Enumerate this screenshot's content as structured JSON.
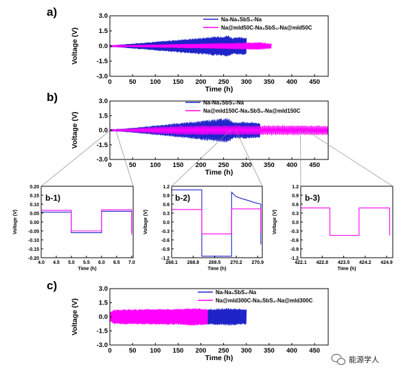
{
  "colors": {
    "blue": "#1f24c8",
    "pink": "#ff00ff",
    "zoom": "#888888"
  },
  "watermark": {
    "text": "能源学人",
    "icon": "wechat-icon"
  },
  "chart_data": [
    {
      "id": "a",
      "type": "line",
      "panel_label": "a)",
      "xlabel": "Time (h)",
      "ylabel": "Voltage (V)",
      "xlim": [
        0,
        480
      ],
      "ylim": [
        -3,
        3
      ],
      "xticks": [
        0,
        50,
        100,
        150,
        200,
        250,
        300,
        350,
        400,
        450
      ],
      "yticks": [
        -3.0,
        -1.5,
        0.0,
        1.5,
        3.0
      ],
      "series": [
        {
          "name": "Na-Na₃SbS₄-Na",
          "color": "#1f24c8",
          "envelope": [
            [
              0,
              0.05
            ],
            [
              50,
              0.25
            ],
            [
              100,
              0.45
            ],
            [
              150,
              0.65
            ],
            [
              200,
              0.85
            ],
            [
              240,
              1.0
            ],
            [
              260,
              1.1
            ],
            [
              270,
              0.85
            ],
            [
              285,
              0.9
            ],
            [
              300,
              0.9
            ]
          ]
        },
        {
          "name": "Na@mld50C-Na₃SbS₄-Na@mld50C",
          "color": "#ff00ff",
          "envelope": [
            [
              0,
              0.05
            ],
            [
              50,
              0.1
            ],
            [
              100,
              0.15
            ],
            [
              150,
              0.2
            ],
            [
              200,
              0.25
            ],
            [
              250,
              0.3
            ],
            [
              300,
              0.35
            ],
            [
              330,
              0.38
            ],
            [
              345,
              0.3
            ],
            [
              355,
              0.25
            ]
          ]
        }
      ]
    },
    {
      "id": "b",
      "type": "line",
      "panel_label": "b)",
      "xlabel": "Time (h)",
      "ylabel": "Voltage (V)",
      "xlim": [
        0,
        480
      ],
      "ylim": [
        -3,
        3
      ],
      "xticks": [
        0,
        50,
        100,
        150,
        200,
        250,
        300,
        350,
        400,
        450
      ],
      "yticks": [
        -3.0,
        -1.5,
        0.0,
        1.5,
        3.0
      ],
      "series": [
        {
          "name": "Na-Na₃SbS₄-Na",
          "color": "#1f24c8",
          "envelope": [
            [
              0,
              0.05
            ],
            [
              50,
              0.25
            ],
            [
              100,
              0.5
            ],
            [
              150,
              0.75
            ],
            [
              200,
              1.0
            ],
            [
              240,
              1.2
            ],
            [
              260,
              1.3
            ],
            [
              270,
              0.9
            ],
            [
              285,
              0.85
            ],
            [
              300,
              0.9
            ],
            [
              330,
              0.8
            ]
          ]
        },
        {
          "name": "Na@mld150C-Na₃SbS₄-Na@mld150C",
          "color": "#ff00ff",
          "envelope": [
            [
              0,
              0.05
            ],
            [
              50,
              0.2
            ],
            [
              100,
              0.35
            ],
            [
              150,
              0.45
            ],
            [
              200,
              0.5
            ],
            [
              300,
              0.5
            ],
            [
              400,
              0.5
            ],
            [
              480,
              0.5
            ]
          ]
        }
      ]
    },
    {
      "id": "b-1",
      "type": "line",
      "panel_label": "b-1)",
      "xlabel": "Time (h)",
      "ylabel": "Voltage (V)",
      "xlim": [
        4.0,
        7.05
      ],
      "ylim": [
        -0.2,
        0.2
      ],
      "xticks": [
        4.0,
        4.5,
        5.0,
        5.5,
        6.0,
        6.5,
        7.0
      ],
      "yticks": [
        -0.2,
        -0.15,
        -0.1,
        -0.05,
        0.0,
        0.05,
        0.1,
        0.15,
        0.2
      ],
      "series": [
        {
          "name": "Na-Na₃SbS₄-Na",
          "color": "#1f24c8",
          "x": [
            4.0,
            4.0,
            5.0,
            5.0,
            6.0,
            6.0,
            7.0,
            7.0
          ],
          "y": [
            -0.05,
            0.055,
            0.055,
            -0.06,
            -0.06,
            0.06,
            0.06,
            -0.06
          ]
        },
        {
          "name": "Na@mld150C-Na₃SbS₄-Na@mld150C",
          "color": "#ff00ff",
          "x": [
            4.0,
            4.0,
            5.0,
            5.0,
            6.0,
            6.0,
            7.0,
            7.0
          ],
          "y": [
            -0.06,
            0.065,
            0.065,
            -0.05,
            -0.05,
            0.068,
            0.068,
            -0.07
          ]
        }
      ]
    },
    {
      "id": "b-2",
      "type": "line",
      "panel_label": "b-2)",
      "xlabel": "Time (h)",
      "ylabel": "Voltage (V)",
      "xlim": [
        268.1,
        271.05
      ],
      "ylim": [
        -1.2,
        1.2
      ],
      "xticks": [
        268.1,
        268.8,
        269.5,
        270.2,
        270.9
      ],
      "yticks": [
        -1.2,
        -0.9,
        -0.6,
        -0.3,
        0.0,
        0.3,
        0.6,
        0.9,
        1.2
      ],
      "series": [
        {
          "name": "Na-Na₃SbS₄-Na",
          "color": "#1f24c8",
          "x": [
            268.1,
            268.1,
            269.08,
            269.08,
            270.05,
            270.05,
            270.2,
            270.4,
            270.6,
            270.8,
            271.0,
            271.0
          ],
          "y": [
            -0.8,
            1.08,
            1.08,
            -1.15,
            -1.15,
            1.0,
            0.85,
            0.78,
            0.72,
            0.65,
            0.6,
            -0.75
          ]
        },
        {
          "name": "Na@mld150C-Na₃SbS₄-Na@mld150C",
          "color": "#ff00ff",
          "x": [
            268.1,
            268.1,
            269.08,
            269.08,
            270.05,
            270.05,
            271.0,
            271.0
          ],
          "y": [
            -0.4,
            0.42,
            0.42,
            -0.4,
            -0.4,
            0.44,
            0.44,
            -0.4
          ]
        }
      ]
    },
    {
      "id": "b-3",
      "type": "line",
      "panel_label": "b-3)",
      "xlabel": "Time (h)",
      "ylabel": "Voltage (V)",
      "xlim": [
        422.1,
        425.1
      ],
      "ylim": [
        -1.2,
        1.2
      ],
      "xticks": [
        422.1,
        422.8,
        423.5,
        424.2,
        424.9
      ],
      "yticks": [
        -1.2,
        -0.9,
        -0.6,
        -0.3,
        0.0,
        0.3,
        0.6,
        0.9,
        1.2
      ],
      "series": [
        {
          "name": "Na@mld150C-Na₃SbS₄-Na@mld150C",
          "color": "#ff00ff",
          "x": [
            422.1,
            422.1,
            423.05,
            423.05,
            424.0,
            424.0,
            425.0,
            425.0
          ],
          "y": [
            -0.4,
            0.47,
            0.47,
            -0.45,
            -0.45,
            0.47,
            0.47,
            -0.45
          ]
        }
      ]
    },
    {
      "id": "c",
      "type": "line",
      "panel_label": "c)",
      "xlabel": "Time (h)",
      "ylabel": "Voltage (V)",
      "xlim": [
        0,
        480
      ],
      "ylim": [
        -3,
        3
      ],
      "xticks": [
        0,
        50,
        100,
        150,
        200,
        250,
        300,
        350,
        400,
        450
      ],
      "yticks": [
        -3.0,
        -1.5,
        0.0,
        1.5,
        3.0
      ],
      "series": [
        {
          "name": "Na-Na₃SbS₄-Na",
          "color": "#1f24c8",
          "envelope": [
            [
              0,
              0.5
            ],
            [
              20,
              0.7
            ],
            [
              100,
              0.75
            ],
            [
              200,
              0.8
            ],
            [
              240,
              0.9
            ],
            [
              260,
              0.95
            ],
            [
              280,
              0.9
            ],
            [
              300,
              0.85
            ]
          ]
        },
        {
          "name": "Na@mld300C-Na₃SbS₄-Na@mld300C",
          "color": "#ff00ff",
          "envelope": [
            [
              0,
              0.5
            ],
            [
              10,
              0.8
            ],
            [
              50,
              0.82
            ],
            [
              100,
              0.85
            ],
            [
              150,
              0.85
            ],
            [
              180,
              0.95
            ],
            [
              200,
              0.9
            ],
            [
              215,
              0.85
            ]
          ]
        }
      ]
    }
  ]
}
